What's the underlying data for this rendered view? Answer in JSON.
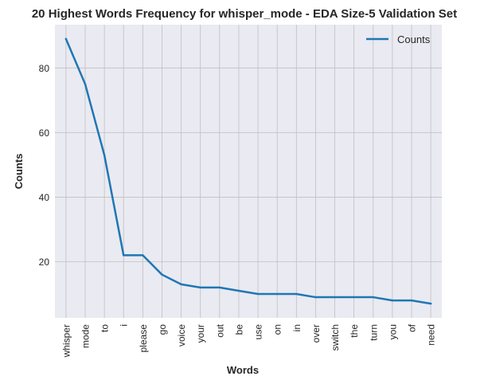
{
  "chart_data": {
    "type": "line",
    "title": "20 Highest Words Frequency for whisper_mode - EDA Size-5 Validation Set",
    "xlabel": "Words",
    "ylabel": "Counts",
    "categories": [
      "whisper",
      "mode",
      "to",
      "i",
      "please",
      "go",
      "voice",
      "your",
      "out",
      "be",
      "use",
      "on",
      "in",
      "over",
      "switch",
      "the",
      "turn",
      "you",
      "of",
      "need"
    ],
    "series": [
      {
        "name": "Counts",
        "color": "#1f77b4",
        "values": [
          89,
          75,
          53,
          22,
          22,
          16,
          13,
          12,
          12,
          11,
          10,
          10,
          10,
          9,
          9,
          9,
          9,
          8,
          8,
          7
        ]
      }
    ],
    "ylim": [
      2.6,
      93.4
    ],
    "yticks": [
      20,
      40,
      60,
      80
    ],
    "grid": true,
    "legend_position": "top-right",
    "background_color": "#eaeaf2",
    "grid_color": "#c0c0c0"
  }
}
